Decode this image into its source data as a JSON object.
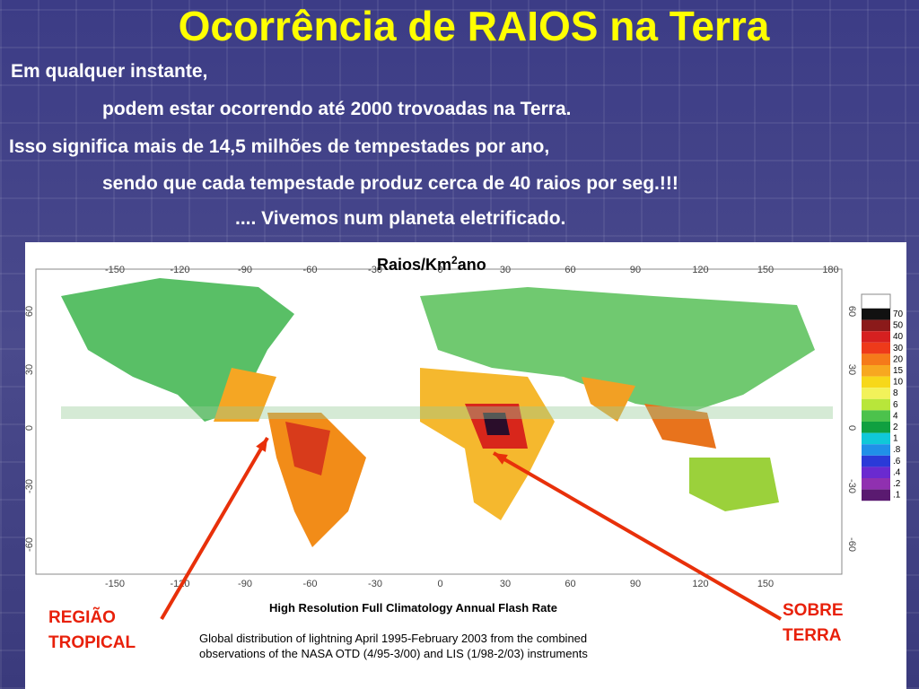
{
  "title": "Ocorrência de RAIOS na Terra",
  "lines": [
    "Em qualquer instante,",
    "podem estar ocorrendo até 2000 trovoadas na Terra.",
    "Isso significa mais de 14,5 milhões de tempestades por ano,",
    "sendo que cada tempestade produz cerca de 40 raios por seg.!!!",
    ".... Vivemos num planeta eletrificado."
  ],
  "figure": {
    "unit_label": "Raios/Km",
    "unit_sup": "2",
    "unit_suffix": "ano",
    "lon_ticks": [
      "-150",
      "-120",
      "-90",
      "-60",
      "-30",
      "0",
      "30",
      "60",
      "90",
      "120",
      "150",
      "180"
    ],
    "lat_ticks": [
      "60",
      "30",
      "0",
      "-30",
      "-60"
    ],
    "legend_labels": [
      "70",
      "50",
      "40",
      "30",
      "20",
      "15",
      "10",
      "8",
      "6",
      "4",
      "2",
      "1",
      ".8",
      ".6",
      ".4",
      ".2",
      ".1"
    ],
    "caption_title": "High Resolution Full Climatology Annual Flash Rate",
    "caption_lines": [
      "Global distribution of lightning April 1995-February 2003 from the combined",
      "observations of the NASA OTD (4/95-3/00) and LIS (1/98-2/03) instruments"
    ]
  },
  "annotations": [
    {
      "lines": [
        "REGIÃO",
        "TROPICAL"
      ]
    },
    {
      "lines": [
        "SOBRE",
        "TERRA"
      ]
    }
  ]
}
